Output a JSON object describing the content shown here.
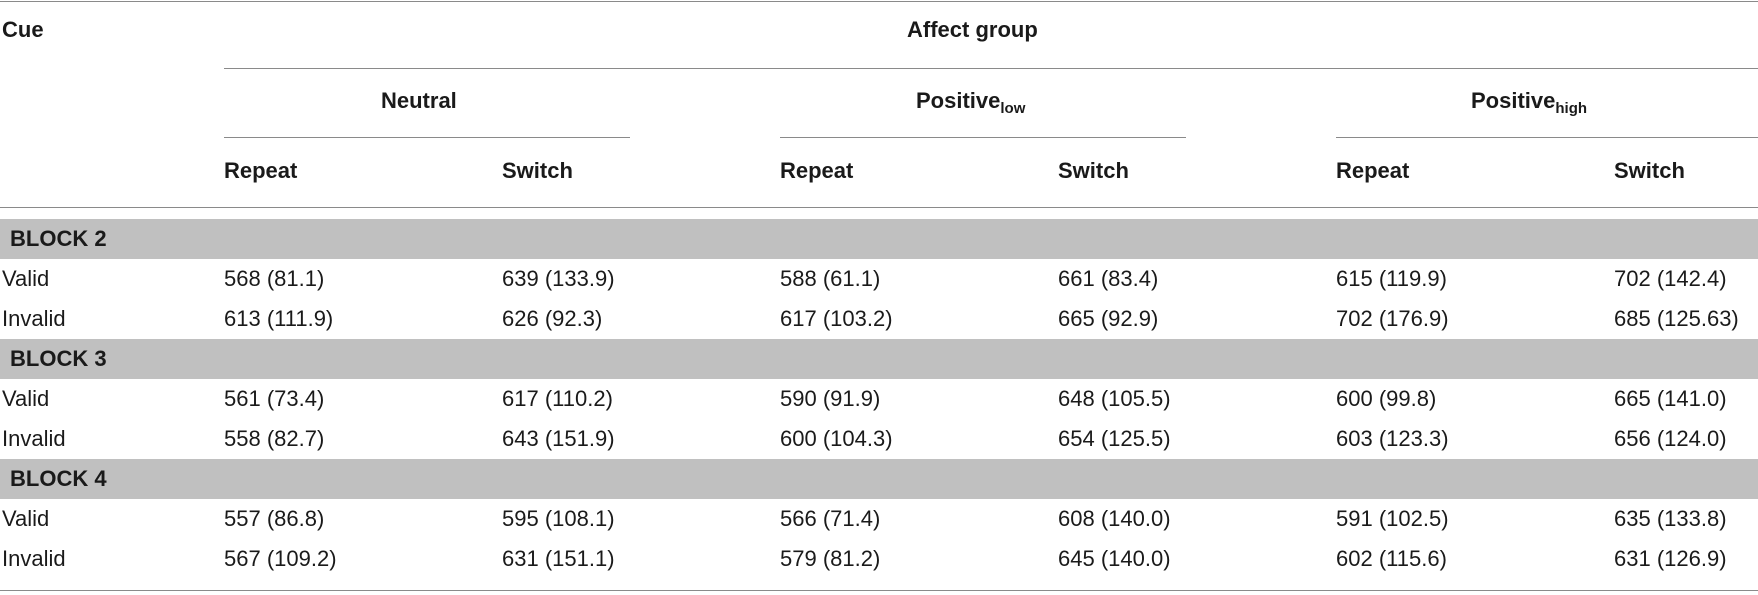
{
  "header": {
    "cue_label": "Cue",
    "affect_group_label": "Affect group",
    "groups": [
      {
        "name": "Neutral",
        "sub": ""
      },
      {
        "name": "Positive",
        "sub": "low"
      },
      {
        "name": "Positive",
        "sub": "high"
      }
    ],
    "subcolumns": [
      "Repeat",
      "Switch",
      "Repeat",
      "Switch",
      "Repeat",
      "Switch"
    ]
  },
  "blocks": [
    {
      "label": "BLOCK 2",
      "rows": [
        {
          "cue": "Valid",
          "values": [
            "568 (81.1)",
            "639 (133.9)",
            "588 (61.1)",
            "661 (83.4)",
            "615 (119.9)",
            "702 (142.4)"
          ]
        },
        {
          "cue": "Invalid",
          "values": [
            "613 (111.9)",
            "626 (92.3)",
            "617 (103.2)",
            "665 (92.9)",
            "702 (176.9)",
            "685 (125.63)"
          ]
        }
      ]
    },
    {
      "label": "BLOCK 3",
      "rows": [
        {
          "cue": "Valid",
          "values": [
            "561 (73.4)",
            "617 (110.2)",
            "590 (91.9)",
            "648 (105.5)",
            "600 (99.8)",
            "665 (141.0)"
          ]
        },
        {
          "cue": "Invalid",
          "values": [
            "558 (82.7)",
            "643 (151.9)",
            "600 (104.3)",
            "654 (125.5)",
            "603 (123.3)",
            "656 (124.0)"
          ]
        }
      ]
    },
    {
      "label": "BLOCK 4",
      "rows": [
        {
          "cue": "Valid",
          "values": [
            "557 (86.8)",
            "595 (108.1)",
            "566 (71.4)",
            "608 (140.0)",
            "591 (102.5)",
            "635 (133.8)"
          ]
        },
        {
          "cue": "Invalid",
          "values": [
            "567 (109.2)",
            "631 (151.1)",
            "579 (81.2)",
            "645 (140.0)",
            "602 (115.6)",
            "631 (126.9)"
          ]
        }
      ]
    }
  ]
}
